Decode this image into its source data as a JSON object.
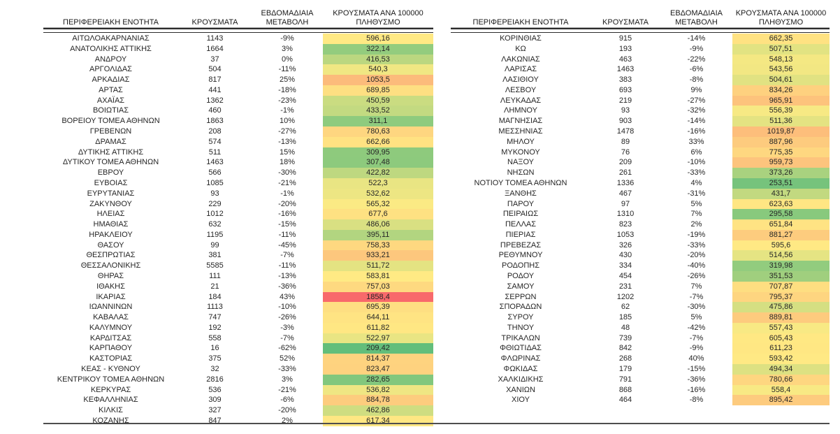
{
  "columns": [
    "ΠΕΡΙΦΕΡΕΙΑΚΗ ΕΝΟΤΗΤΑ",
    "ΚΡΟΥΣΜΑΤΑ",
    "ΕΒΔΟΜΑΔΙΑΙΑ ΜΕΤΑΒΟΛΗ",
    "ΚΡΟΥΣΜΑΤΑ ΑΝΑ 100000 ΠΛΗΘΥΣΜΟ"
  ],
  "colors": {
    "text": "#262626",
    "rule": "#2b2b2b",
    "bottom_rule": "#4d4d4d"
  },
  "chart_data": {
    "type": "table",
    "heatmap_column": "ΚΡΟΥΣΜΑΤΑ ΑΝΑ 100000 ΠΛΗΘΥΣΜΟ",
    "color_scale": {
      "min_value": 209.42,
      "min_color": "#63BE7B",
      "mid_value": 575,
      "mid_color": "#FFEB84",
      "max_value": 1858.4,
      "max_color": "#F8696B"
    },
    "tables": [
      {
        "rows": [
          [
            "ΑΙΤΩΛΟΑΚΑΡΝΑΝΙΑΣ",
            "1143",
            "-9%",
            "596,16"
          ],
          [
            "ΑΝΑΤΟΛΙΚΗΣ ΑΤΤΙΚΗΣ",
            "1664",
            "3%",
            "322,14"
          ],
          [
            "ΑΝΔΡΟΥ",
            "37",
            "0%",
            "416,53"
          ],
          [
            "ΑΡΓΟΛΙΔΑΣ",
            "504",
            "-11%",
            "540,3"
          ],
          [
            "ΑΡΚΑΔΙΑΣ",
            "817",
            "25%",
            "1053,5"
          ],
          [
            "ΑΡΤΑΣ",
            "441",
            "-18%",
            "689,85"
          ],
          [
            "ΑΧΑΪΑΣ",
            "1362",
            "-23%",
            "450,59"
          ],
          [
            "ΒΟΙΩΤΙΑΣ",
            "460",
            "-1%",
            "433,52"
          ],
          [
            "ΒΟΡΕΙΟΥ ΤΟΜΕΑ ΑΘΗΝΩΝ",
            "1863",
            "10%",
            "311,1"
          ],
          [
            "ΓΡΕΒΕΝΩΝ",
            "208",
            "-27%",
            "780,63"
          ],
          [
            "ΔΡΑΜΑΣ",
            "574",
            "-13%",
            "662,66"
          ],
          [
            "ΔΥΤΙΚΗΣ ΑΤΤΙΚΗΣ",
            "511",
            "15%",
            "309,95"
          ],
          [
            "ΔΥΤΙΚΟΥ ΤΟΜΕΑ ΑΘΗΝΩΝ",
            "1463",
            "18%",
            "307,48"
          ],
          [
            "ΕΒΡΟΥ",
            "566",
            "-30%",
            "422,82"
          ],
          [
            "ΕΥΒΟΙΑΣ",
            "1085",
            "-21%",
            "522,3"
          ],
          [
            "ΕΥΡΥΤΑΝΙΑΣ",
            "93",
            "-1%",
            "532,62"
          ],
          [
            "ΖΑΚΥΝΘΟΥ",
            "229",
            "-20%",
            "565,32"
          ],
          [
            "ΗΛΕΙΑΣ",
            "1012",
            "-16%",
            "677,6"
          ],
          [
            "ΗΜΑΘΙΑΣ",
            "632",
            "-15%",
            "486,06"
          ],
          [
            "ΗΡΑΚΛΕΙΟΥ",
            "1195",
            "-11%",
            "395,11"
          ],
          [
            "ΘΑΣΟΥ",
            "99",
            "-45%",
            "758,33"
          ],
          [
            "ΘΕΣΠΡΩΤΙΑΣ",
            "381",
            "-7%",
            "933,21"
          ],
          [
            "ΘΕΣΣΑΛΟΝΙΚΗΣ",
            "5585",
            "-11%",
            "511,72"
          ],
          [
            "ΘΗΡΑΣ",
            "111",
            "-13%",
            "583,81"
          ],
          [
            "ΙΘΑΚΗΣ",
            "21",
            "-36%",
            "757,03"
          ],
          [
            "ΙΚΑΡΙΑΣ",
            "184",
            "43%",
            "1858,4"
          ],
          [
            "ΙΩΑΝΝΙΝΩΝ",
            "1113",
            "-10%",
            "695,39"
          ],
          [
            "ΚΑΒΑΛΑΣ",
            "747",
            "-26%",
            "644,11"
          ],
          [
            "ΚΑΛΥΜΝΟΥ",
            "192",
            "-3%",
            "611,82"
          ],
          [
            "ΚΑΡΔΙΤΣΑΣ",
            "558",
            "-7%",
            "522,97"
          ],
          [
            "ΚΑΡΠΑΘΟΥ",
            "16",
            "-62%",
            "209,42"
          ],
          [
            "ΚΑΣΤΟΡΙΑΣ",
            "375",
            "52%",
            "814,37"
          ],
          [
            "ΚΕΑΣ - ΚΥΘΝΟΥ",
            "32",
            "-33%",
            "823,47"
          ],
          [
            "ΚΕΝΤΡΙΚΟΥ ΤΟΜΕΑ ΑΘΗΝΩΝ",
            "2816",
            "3%",
            "282,65"
          ],
          [
            "ΚΕΡΚΥΡΑΣ",
            "536",
            "-21%",
            "536,82"
          ],
          [
            "ΚΕΦΑΛΛΗΝΙΑΣ",
            "309",
            "-6%",
            "884,78"
          ],
          [
            "ΚΙΛΚΙΣ",
            "327",
            "-20%",
            "462,86"
          ],
          [
            "ΚΟΖΑΝΗΣ",
            "847",
            "2%",
            "617,34"
          ]
        ]
      },
      {
        "rows": [
          [
            "ΚΟΡΙΝΘΙΑΣ",
            "915",
            "-14%",
            "662,35"
          ],
          [
            "ΚΩ",
            "193",
            "-9%",
            "507,51"
          ],
          [
            "ΛΑΚΩΝΙΑΣ",
            "463",
            "-22%",
            "548,13"
          ],
          [
            "ΛΑΡΙΣΑΣ",
            "1463",
            "-6%",
            "543,56"
          ],
          [
            "ΛΑΣΙΘΙΟΥ",
            "383",
            "-8%",
            "504,61"
          ],
          [
            "ΛΕΣΒΟΥ",
            "693",
            "9%",
            "834,26"
          ],
          [
            "ΛΕΥΚΑΔΑΣ",
            "219",
            "-27%",
            "965,91"
          ],
          [
            "ΛΗΜΝΟΥ",
            "93",
            "-32%",
            "556,39"
          ],
          [
            "ΜΑΓΝΗΣΙΑΣ",
            "903",
            "-14%",
            "511,36"
          ],
          [
            "ΜΕΣΣΗΝΙΑΣ",
            "1478",
            "-16%",
            "1019,87"
          ],
          [
            "ΜΗΛΟΥ",
            "89",
            "33%",
            "887,96"
          ],
          [
            "ΜΥΚΟΝΟΥ",
            "76",
            "6%",
            "775,35"
          ],
          [
            "ΝΑΞΟΥ",
            "209",
            "-10%",
            "959,73"
          ],
          [
            "ΝΗΣΩΝ",
            "261",
            "-33%",
            "373,26"
          ],
          [
            "ΝΟΤΙΟΥ ΤΟΜΕΑ ΑΘΗΝΩΝ",
            "1336",
            "4%",
            "253,51"
          ],
          [
            "ΞΑΝΘΗΣ",
            "467",
            "-31%",
            "431,7"
          ],
          [
            "ΠΑΡΟΥ",
            "97",
            "5%",
            "623,63"
          ],
          [
            "ΠΕΙΡΑΙΩΣ",
            "1310",
            "7%",
            "295,58"
          ],
          [
            "ΠΕΛΛΑΣ",
            "823",
            "2%",
            "651,84"
          ],
          [
            "ΠΙΕΡΙΑΣ",
            "1053",
            "-19%",
            "881,27"
          ],
          [
            "ΠΡΕΒΕΖΑΣ",
            "326",
            "-33%",
            "595,6"
          ],
          [
            "ΡΕΘΥΜΝΟΥ",
            "430",
            "-20%",
            "514,56"
          ],
          [
            "ΡΟΔΟΠΗΣ",
            "334",
            "-40%",
            "319,98"
          ],
          [
            "ΡΟΔΟΥ",
            "454",
            "-26%",
            "351,53"
          ],
          [
            "ΣΑΜΟΥ",
            "231",
            "7%",
            "707,87"
          ],
          [
            "ΣΕΡΡΩΝ",
            "1202",
            "-7%",
            "795,37"
          ],
          [
            "ΣΠΟΡΑΔΩΝ",
            "62",
            "-30%",
            "475,86"
          ],
          [
            "ΣΥΡΟΥ",
            "185",
            "5%",
            "889,81"
          ],
          [
            "ΤΗΝΟΥ",
            "48",
            "-42%",
            "557,43"
          ],
          [
            "ΤΡΙΚΑΛΩΝ",
            "739",
            "-7%",
            "605,43"
          ],
          [
            "ΦΘΙΩΤΙΔΑΣ",
            "842",
            "-9%",
            "611,23"
          ],
          [
            "ΦΛΩΡΙΝΑΣ",
            "268",
            "40%",
            "593,42"
          ],
          [
            "ΦΩΚΙΔΑΣ",
            "179",
            "-15%",
            "494,34"
          ],
          [
            "ΧΑΛΚΙΔΙΚΗΣ",
            "791",
            "-36%",
            "780,66"
          ],
          [
            "ΧΑΝΙΩΝ",
            "868",
            "-16%",
            "558,4"
          ],
          [
            "ΧΙΟΥ",
            "464",
            "-8%",
            "895,42"
          ]
        ]
      }
    ]
  }
}
